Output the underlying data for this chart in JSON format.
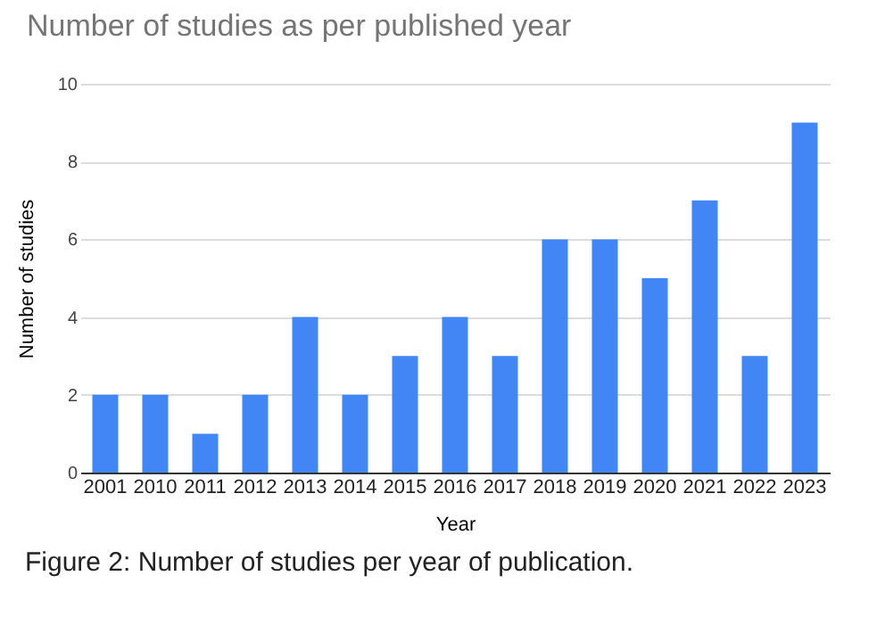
{
  "chart_data": {
    "type": "bar",
    "title": "Number of studies as per published year",
    "xlabel": "Year",
    "ylabel": "Number of studies",
    "categories": [
      "2001",
      "2010",
      "2011",
      "2012",
      "2013",
      "2014",
      "2015",
      "2016",
      "2017",
      "2018",
      "2019",
      "2020",
      "2021",
      "2022",
      "2023"
    ],
    "values": [
      2,
      2,
      1,
      2,
      4,
      2,
      3,
      4,
      3,
      6,
      6,
      5,
      7,
      3,
      9
    ],
    "color": "#4285f4",
    "ylim": [
      0,
      10
    ],
    "yticks": [
      0,
      2,
      4,
      6,
      8,
      10
    ],
    "grid": "y",
    "annotations": [
      "Figure 2: Number of studies per year of publication."
    ]
  }
}
